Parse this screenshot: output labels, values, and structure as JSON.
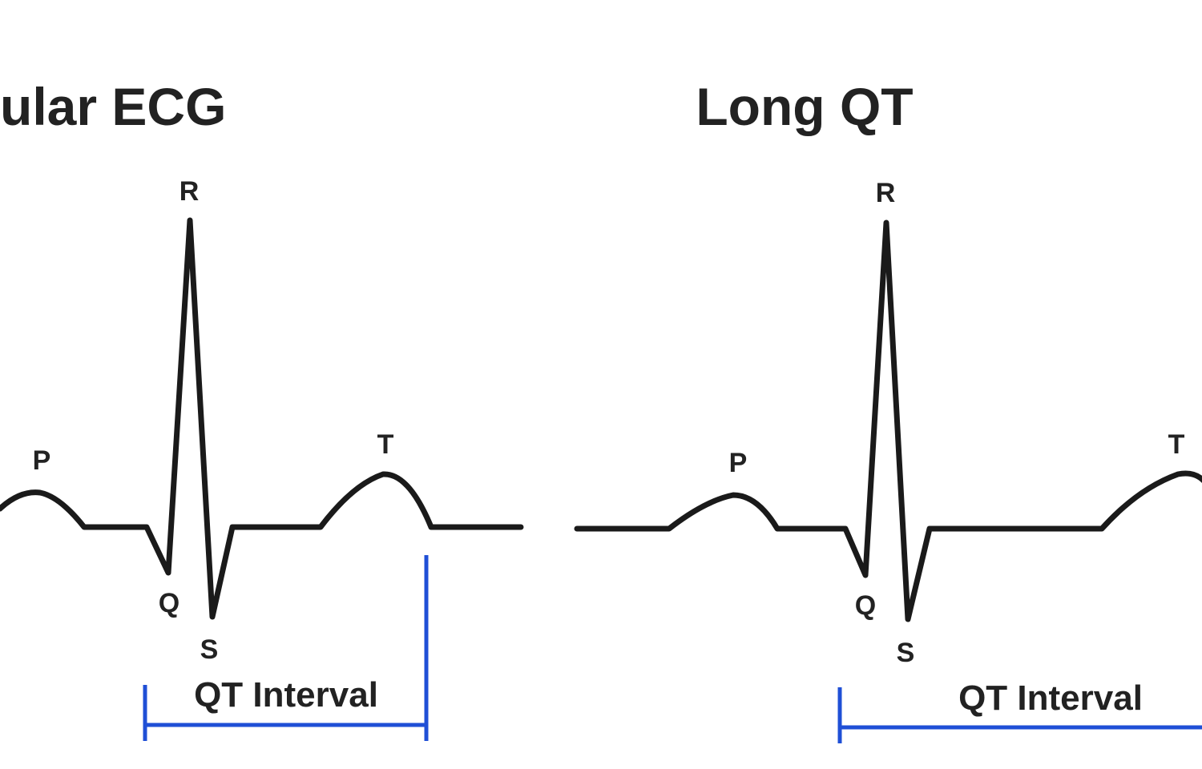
{
  "panels": [
    {
      "title": "ular ECG",
      "labels": {
        "R": "R",
        "P": "P",
        "Q": "Q",
        "S": "S",
        "T": "T"
      },
      "interval": "QT Interval"
    },
    {
      "title": "Long QT",
      "labels": {
        "R": "R",
        "P": "P",
        "Q": "Q",
        "S": "S",
        "T": "T"
      },
      "interval": "QT Interval"
    }
  ]
}
